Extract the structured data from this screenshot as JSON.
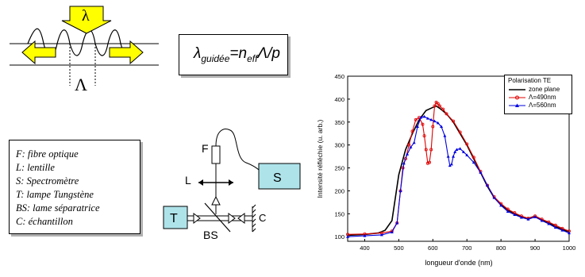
{
  "formula": {
    "prefix": "λ",
    "sub1": "guidée",
    "mid": "=n",
    "sub2": "eff",
    "suffix": "Λ/p"
  },
  "grating": {
    "lambda_label": "λ",
    "period_label": "Λ"
  },
  "setup": {
    "items": [
      "F: fibre optique",
      "L: lentille",
      "S: Spectromètre",
      "T: lampe Tungstène",
      "BS: lame séparatrice",
      "C: échantillon"
    ],
    "labels": {
      "F": "F",
      "L": "L",
      "S": "S",
      "T": "T",
      "BS": "BS",
      "C": "C"
    },
    "colors": {
      "box_fill": "#aee3ea",
      "arrow_fill": "#ffff00"
    }
  },
  "chart_data": {
    "type": "line",
    "xlabel": "longueur d'onde (nm)",
    "ylabel": "Intensité réfléchie (u. arb.)",
    "xlim": [
      350,
      1000
    ],
    "ylim": [
      90,
      450
    ],
    "xticks": [
      400,
      500,
      600,
      700,
      800,
      900,
      1000
    ],
    "yticks": [
      100,
      150,
      200,
      250,
      300,
      350,
      400,
      450
    ],
    "legend": {
      "title": "Polarisation TE",
      "placement": "top-right"
    },
    "series": [
      {
        "name": "zone plane",
        "color": "#000000",
        "marker": "none",
        "x": [
          350,
          400,
          440,
          460,
          480,
          500,
          520,
          540,
          560,
          580,
          600,
          610,
          620,
          640,
          660,
          680,
          700,
          720,
          740,
          760,
          780,
          800,
          820,
          840,
          860,
          880,
          900,
          920,
          940,
          960,
          980,
          1000
        ],
        "y": [
          103,
          105,
          108,
          114,
          135,
          235,
          290,
          325,
          355,
          375,
          382,
          385,
          380,
          368,
          350,
          325,
          300,
          270,
          240,
          210,
          185,
          170,
          158,
          150,
          143,
          140,
          145,
          137,
          130,
          122,
          116,
          110
        ]
      },
      {
        "name": "Λ=490nm",
        "color": "#e00000",
        "marker": "circle",
        "x": [
          350,
          400,
          450,
          480,
          495,
          505,
          512,
          520,
          530,
          540,
          550,
          560,
          570,
          575,
          580,
          585,
          590,
          595,
          600,
          605,
          610,
          615,
          620,
          630,
          640,
          660,
          680,
          700,
          720,
          740,
          760,
          780,
          800,
          820,
          840,
          860,
          880,
          900,
          920,
          940,
          960,
          980,
          1000
        ],
        "y": [
          105,
          106,
          108,
          112,
          130,
          200,
          250,
          270,
          300,
          330,
          355,
          360,
          345,
          320,
          290,
          260,
          262,
          290,
          340,
          385,
          393,
          390,
          385,
          378,
          368,
          352,
          328,
          302,
          273,
          242,
          212,
          187,
          172,
          160,
          152,
          145,
          140,
          145,
          138,
          132,
          125,
          118,
          112
        ]
      },
      {
        "name": "Λ=560nm",
        "color": "#0000e0",
        "marker": "triangle",
        "x": [
          350,
          400,
          450,
          480,
          495,
          505,
          515,
          525,
          535,
          545,
          555,
          565,
          575,
          585,
          595,
          605,
          615,
          625,
          635,
          645,
          650,
          655,
          660,
          665,
          670,
          680,
          690,
          700,
          720,
          740,
          760,
          780,
          800,
          820,
          840,
          860,
          880,
          900,
          920,
          940,
          960,
          980,
          1000
        ],
        "y": [
          100,
          102,
          104,
          110,
          130,
          200,
          260,
          280,
          295,
          305,
          340,
          360,
          362,
          358,
          355,
          352,
          348,
          340,
          320,
          275,
          255,
          258,
          275,
          285,
          290,
          292,
          285,
          278,
          262,
          240,
          212,
          185,
          168,
          155,
          148,
          142,
          138,
          143,
          135,
          128,
          120,
          114,
          108
        ]
      }
    ]
  }
}
